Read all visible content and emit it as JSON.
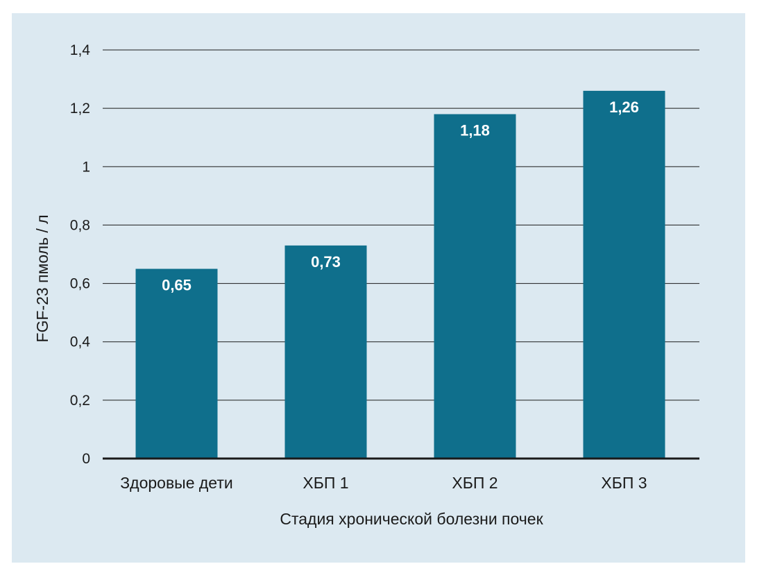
{
  "chart_data": {
    "type": "bar",
    "categories": [
      "Здоровые дети",
      "ХБП 1",
      "ХБП 2",
      "ХБП 3"
    ],
    "values": [
      0.65,
      0.73,
      1.18,
      1.26
    ],
    "data_labels": [
      "0,65",
      "0,73",
      "1,18",
      "1,26"
    ],
    "title": "",
    "xlabel": "Стадия хронической болезни почек",
    "ylabel": "FGF-23 пмоль / л",
    "ylim": [
      0,
      1.4
    ],
    "yticks": [
      0,
      0.2,
      0.4,
      0.6,
      0.8,
      1,
      1.2,
      1.4
    ],
    "ytick_labels": [
      "0",
      "0,2",
      "0,4",
      "0,6",
      "0,8",
      "1",
      "1,2",
      "1,4"
    ],
    "grid": true,
    "legend": "none",
    "colors": {
      "bar": "#0f6f8c",
      "background": "#dce9f1",
      "grid": "#1a1a1a"
    }
  }
}
